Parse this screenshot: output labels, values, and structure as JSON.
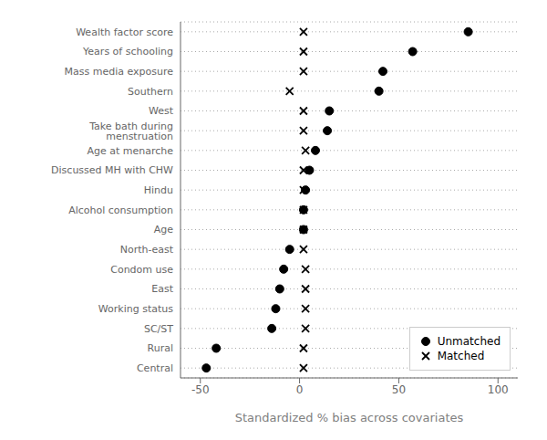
{
  "chart_data": {
    "type": "dot",
    "categories": [
      "Wealth factor score",
      "Years of schooling",
      "Mass media exposure",
      "Southern",
      "West",
      "Take bath during menstruation",
      "Age at menarche",
      "Discussed MH with CHW",
      "Hindu",
      "Alcohol consumption",
      "Age",
      "North-east",
      "Condom use",
      "East",
      "Working status",
      "SC/ST",
      "Rural",
      "Central"
    ],
    "series": [
      {
        "name": "Unmatched",
        "color": "#000000",
        "marker": "circle",
        "values": [
          85,
          57,
          42,
          40,
          15,
          14,
          8,
          5,
          3,
          2,
          2,
          -5,
          -8,
          -10,
          -12,
          -14,
          -42,
          -47
        ]
      },
      {
        "name": "Matched",
        "color": "#000000",
        "marker": "x",
        "values": [
          2,
          2,
          2,
          -5,
          2,
          2,
          3,
          2,
          2,
          2,
          2,
          2,
          3,
          3,
          3,
          3,
          2,
          2
        ]
      }
    ],
    "xlabel": "Standardized % bias across covariates",
    "xlim": [
      -60,
      110
    ],
    "xticks": [
      -50,
      0,
      50,
      100
    ],
    "grid": true,
    "legend": "lower right"
  }
}
